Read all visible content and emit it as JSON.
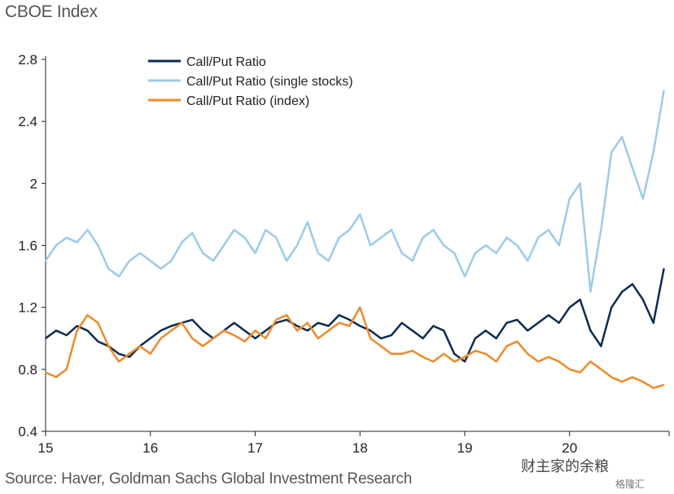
{
  "chart_data": {
    "type": "line",
    "title": "CBOE Index",
    "source": "Source: Haver, Goldman Sachs Global Investment Research",
    "watermark": "财主家的余粮",
    "watermark_small": "格隆汇",
    "xlabel": "",
    "ylabel": "",
    "xlim": [
      2015,
      2020.95
    ],
    "ylim": [
      0.4,
      2.8
    ],
    "x_ticks": [
      "15",
      "16",
      "17",
      "18",
      "19",
      "20"
    ],
    "y_ticks": [
      "0.4",
      "0.8",
      "1.2",
      "1.6",
      "2",
      "2.4",
      "2.8"
    ],
    "grid": false,
    "legend_position": "top-left",
    "x": [
      2015.0,
      2015.1,
      2015.2,
      2015.3,
      2015.4,
      2015.5,
      2015.6,
      2015.7,
      2015.8,
      2015.9,
      2016.0,
      2016.1,
      2016.2,
      2016.3,
      2016.4,
      2016.5,
      2016.6,
      2016.7,
      2016.8,
      2016.9,
      2017.0,
      2017.1,
      2017.2,
      2017.3,
      2017.4,
      2017.5,
      2017.6,
      2017.7,
      2017.8,
      2017.9,
      2018.0,
      2018.1,
      2018.2,
      2018.3,
      2018.4,
      2018.5,
      2018.6,
      2018.7,
      2018.8,
      2018.9,
      2019.0,
      2019.1,
      2019.2,
      2019.3,
      2019.4,
      2019.5,
      2019.6,
      2019.7,
      2019.8,
      2019.9,
      2020.0,
      2020.1,
      2020.2,
      2020.3,
      2020.4,
      2020.5,
      2020.6,
      2020.7,
      2020.8,
      2020.9
    ],
    "series": [
      {
        "name": "Call/Put Ratio",
        "color": "#0d2b52",
        "values": [
          1.0,
          1.05,
          1.02,
          1.08,
          1.05,
          0.98,
          0.95,
          0.9,
          0.88,
          0.95,
          1.0,
          1.05,
          1.08,
          1.1,
          1.12,
          1.05,
          1.0,
          1.05,
          1.1,
          1.05,
          1.0,
          1.05,
          1.1,
          1.12,
          1.08,
          1.05,
          1.1,
          1.08,
          1.15,
          1.12,
          1.08,
          1.05,
          1.0,
          1.02,
          1.1,
          1.05,
          1.0,
          1.08,
          1.05,
          0.9,
          0.85,
          1.0,
          1.05,
          1.0,
          1.1,
          1.12,
          1.05,
          1.1,
          1.15,
          1.1,
          1.2,
          1.25,
          1.05,
          0.95,
          1.2,
          1.3,
          1.35,
          1.25,
          1.1,
          1.45
        ]
      },
      {
        "name": "Call/Put Ratio (single stocks)",
        "color": "#9ccbe8",
        "values": [
          1.5,
          1.6,
          1.65,
          1.62,
          1.7,
          1.6,
          1.45,
          1.4,
          1.5,
          1.55,
          1.5,
          1.45,
          1.5,
          1.62,
          1.68,
          1.55,
          1.5,
          1.6,
          1.7,
          1.65,
          1.55,
          1.7,
          1.65,
          1.5,
          1.6,
          1.75,
          1.55,
          1.5,
          1.65,
          1.7,
          1.8,
          1.6,
          1.65,
          1.7,
          1.55,
          1.5,
          1.65,
          1.7,
          1.6,
          1.55,
          1.4,
          1.55,
          1.6,
          1.55,
          1.65,
          1.6,
          1.5,
          1.65,
          1.7,
          1.6,
          1.9,
          2.0,
          1.3,
          1.7,
          2.2,
          2.3,
          2.1,
          1.9,
          2.2,
          2.6
        ]
      },
      {
        "name": "Call/Put Ratio (index)",
        "color": "#ee8a2a",
        "values": [
          0.78,
          0.75,
          0.8,
          1.05,
          1.15,
          1.1,
          0.95,
          0.85,
          0.9,
          0.95,
          0.9,
          1.0,
          1.05,
          1.1,
          1.0,
          0.95,
          1.0,
          1.05,
          1.02,
          0.98,
          1.05,
          1.0,
          1.12,
          1.15,
          1.05,
          1.1,
          1.0,
          1.05,
          1.1,
          1.08,
          1.2,
          1.0,
          0.95,
          0.9,
          0.9,
          0.92,
          0.88,
          0.85,
          0.9,
          0.85,
          0.88,
          0.92,
          0.9,
          0.85,
          0.95,
          0.98,
          0.9,
          0.85,
          0.88,
          0.85,
          0.8,
          0.78,
          0.85,
          0.8,
          0.75,
          0.72,
          0.75,
          0.72,
          0.68,
          0.7
        ]
      }
    ]
  }
}
